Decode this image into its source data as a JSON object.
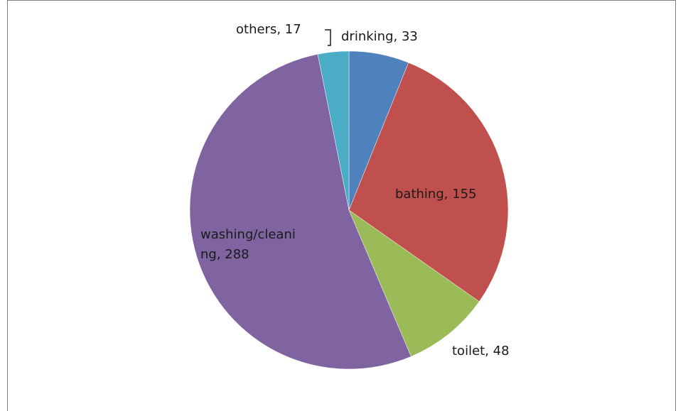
{
  "chart_data": {
    "type": "pie",
    "title": "",
    "categories": [
      "drinking",
      "bathing",
      "toilet",
      "washing/cleaning",
      "others"
    ],
    "values": [
      33,
      155,
      48,
      288,
      17
    ],
    "data_labels": [
      [
        "drinking, 33"
      ],
      [
        "bathing, 155"
      ],
      [
        "toilet, 48"
      ],
      [
        "washing/cleani",
        "ng, 288"
      ],
      [
        "others, 17"
      ]
    ],
    "colors": [
      "#4f81bd",
      "#c0504d",
      "#9bbb59",
      "#8064a2",
      "#4bacc6"
    ],
    "start_angle": "12 o'clock",
    "direction": "clockwise",
    "legend": "none"
  }
}
